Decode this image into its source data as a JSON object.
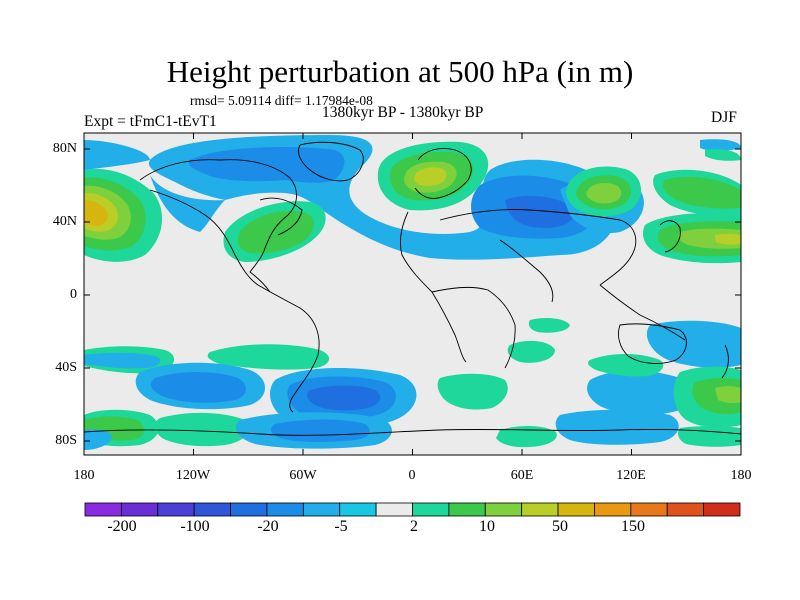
{
  "title": "Height perturbation at 500 hPa (in m)",
  "stats": "rmsd= 5.09114 diff= 1.17984e-08",
  "period": "1380kyr BP - 1380kyr BP",
  "experiment": "Expt = tFmC1-tEvT1",
  "season": "DJF",
  "lat_ticks": [
    "80N",
    "40N",
    "0",
    "40S",
    "80S"
  ],
  "lon_ticks": [
    "180",
    "120W",
    "60W",
    "0",
    "60E",
    "120E",
    "180"
  ],
  "colorbar": {
    "labels": [
      "-200",
      "-100",
      "-20",
      "-5",
      "2",
      "10",
      "50",
      "150"
    ],
    "colors": [
      "#8a2be2",
      "#6a2ed6",
      "#4b3fd8",
      "#2f56d8",
      "#1f6fe0",
      "#1b8de8",
      "#22aee8",
      "#18c7e3",
      "#ebebeb",
      "#1ed79a",
      "#3cc84a",
      "#7fd03d",
      "#b9cf28",
      "#d6b50e",
      "#e8990f",
      "#e8781a",
      "#e0521c",
      "#d22c1a"
    ]
  },
  "map": {
    "background_color": "#ebebeb",
    "field": [
      {
        "color": "#1b8de8",
        "shape": "arctic-negative"
      },
      {
        "color": "#3cc84a",
        "shape": "north-pacific-positive"
      },
      {
        "color": "#3cc84a",
        "shape": "north-america-positive"
      },
      {
        "color": "#3cc84a",
        "shape": "greenland-positive"
      },
      {
        "color": "#1b8de8",
        "shape": "eurasia-negative"
      },
      {
        "color": "#3cc84a",
        "shape": "siberia-positive"
      },
      {
        "color": "#1b8de8",
        "shape": "southern-ocean-negative"
      }
    ]
  }
}
